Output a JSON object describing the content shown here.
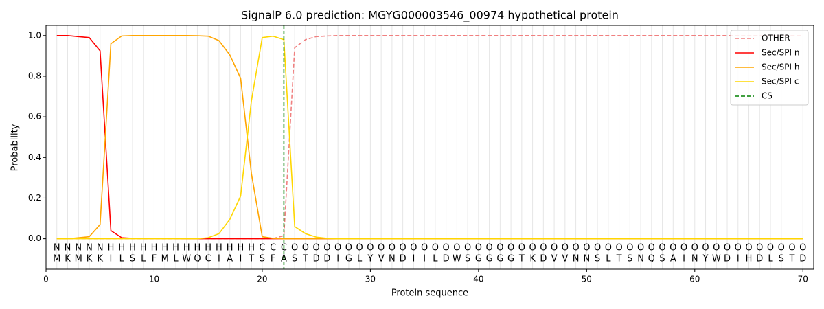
{
  "chart_data": {
    "type": "line",
    "title": "SignalP 6.0 prediction: MGYG000003546_00974 hypothetical protein",
    "x_label": "Protein sequence",
    "y_label": "Probability",
    "x": [
      1,
      2,
      3,
      4,
      5,
      6,
      7,
      8,
      9,
      10,
      11,
      12,
      13,
      14,
      15,
      16,
      17,
      18,
      19,
      20,
      21,
      22,
      23,
      24,
      25,
      26,
      27,
      28,
      29,
      30,
      31,
      32,
      33,
      34,
      35,
      36,
      37,
      38,
      39,
      40,
      41,
      42,
      43,
      44,
      45,
      46,
      47,
      48,
      49,
      50,
      51,
      52,
      53,
      54,
      55,
      56,
      57,
      58,
      59,
      60,
      61,
      62,
      63,
      64,
      65,
      66,
      67,
      68,
      69,
      70
    ],
    "residues": [
      "M",
      "K",
      "M",
      "K",
      "K",
      "I",
      "L",
      "S",
      "L",
      "F",
      "M",
      "L",
      "W",
      "Q",
      "C",
      "I",
      "A",
      "I",
      "T",
      "S",
      "F",
      "A",
      "S",
      "T",
      "D",
      "D",
      "I",
      "G",
      "L",
      "Y",
      "V",
      "N",
      "D",
      "I",
      "I",
      "L",
      "D",
      "W",
      "S",
      "G",
      "G",
      "G",
      "G",
      "T",
      "K",
      "D",
      "V",
      "V",
      "N",
      "N",
      "S",
      "L",
      "T",
      "S",
      "N",
      "Q",
      "S",
      "A",
      "I",
      "N",
      "Y",
      "W",
      "D",
      "I",
      "H",
      "D",
      "L",
      "S",
      "T",
      "D"
    ],
    "regions": [
      "N",
      "N",
      "N",
      "N",
      "N",
      "H",
      "H",
      "H",
      "H",
      "H",
      "H",
      "H",
      "H",
      "H",
      "H",
      "H",
      "H",
      "H",
      "H",
      "C",
      "C",
      "C",
      "O",
      "O",
      "O",
      "O",
      "O",
      "O",
      "O",
      "O",
      "O",
      "O",
      "O",
      "O",
      "O",
      "O",
      "O",
      "O",
      "O",
      "O",
      "O",
      "O",
      "O",
      "O",
      "O",
      "O",
      "O",
      "O",
      "O",
      "O",
      "O",
      "O",
      "O",
      "O",
      "O",
      "O",
      "O",
      "O",
      "O",
      "O",
      "O",
      "O",
      "O",
      "O",
      "O",
      "O",
      "O",
      "O",
      "O",
      "O"
    ],
    "region_colors": {
      "N": "#ff0000",
      "H": "#ffa500",
      "C": "#ffd700",
      "O": "#808080"
    },
    "series": [
      {
        "name": "OTHER",
        "color": "#f08080",
        "dashed": true,
        "values": [
          0,
          0,
          0,
          0,
          0,
          0,
          0,
          0,
          0,
          0,
          0,
          0,
          0,
          0,
          0,
          0,
          0,
          0,
          0,
          0,
          0.001,
          0.015,
          0.94,
          0.98,
          0.995,
          0.998,
          1,
          1,
          1,
          1,
          1,
          1,
          1,
          1,
          1,
          1,
          1,
          1,
          1,
          1,
          1,
          1,
          1,
          1,
          1,
          1,
          1,
          1,
          1,
          1,
          1,
          1,
          1,
          1,
          1,
          1,
          1,
          1,
          1,
          1,
          1,
          1,
          1,
          1,
          1,
          1,
          1,
          1,
          1,
          1
        ]
      },
      {
        "name": "Sec/SPI n",
        "color": "#ff0000",
        "dashed": false,
        "values": [
          1,
          1,
          0.995,
          0.99,
          0.925,
          0.04,
          0.005,
          0.002,
          0.001,
          0.001,
          0.001,
          0.001,
          0,
          0,
          0,
          0,
          0,
          0,
          0,
          0,
          0,
          0,
          0,
          0,
          0,
          0,
          0,
          0,
          0,
          0,
          0,
          0,
          0,
          0,
          0,
          0,
          0,
          0,
          0,
          0,
          0,
          0,
          0,
          0,
          0,
          0,
          0,
          0,
          0,
          0,
          0,
          0,
          0,
          0,
          0,
          0,
          0,
          0,
          0,
          0,
          0,
          0,
          0,
          0,
          0,
          0,
          0,
          0,
          0,
          0
        ]
      },
      {
        "name": "Sec/SPI h",
        "color": "#ffa500",
        "dashed": false,
        "values": [
          0,
          0,
          0.005,
          0.01,
          0.07,
          0.96,
          0.998,
          1,
          1,
          1,
          1,
          1,
          1,
          0.999,
          0.997,
          0.975,
          0.905,
          0.79,
          0.32,
          0.01,
          0.002,
          0,
          0,
          0,
          0,
          0,
          0,
          0,
          0,
          0,
          0,
          0,
          0,
          0,
          0,
          0,
          0,
          0,
          0,
          0,
          0,
          0,
          0,
          0,
          0,
          0,
          0,
          0,
          0,
          0,
          0,
          0,
          0,
          0,
          0,
          0,
          0,
          0,
          0,
          0,
          0,
          0,
          0,
          0,
          0,
          0,
          0,
          0,
          0,
          0
        ]
      },
      {
        "name": "Sec/SPI c",
        "color": "#ffd700",
        "dashed": false,
        "values": [
          0,
          0,
          0,
          0,
          0,
          0,
          0,
          0,
          0,
          0,
          0,
          0,
          0,
          0,
          0.005,
          0.025,
          0.095,
          0.21,
          0.68,
          0.99,
          0.997,
          0.98,
          0.06,
          0.025,
          0.008,
          0.002,
          0,
          0,
          0,
          0,
          0,
          0,
          0,
          0,
          0,
          0,
          0,
          0,
          0,
          0,
          0,
          0,
          0,
          0,
          0,
          0,
          0,
          0,
          0,
          0,
          0,
          0,
          0,
          0,
          0,
          0,
          0,
          0,
          0,
          0,
          0,
          0,
          0,
          0,
          0,
          0,
          0,
          0,
          0,
          0
        ]
      }
    ],
    "cs": {
      "name": "CS",
      "color": "#008000",
      "x": 22
    },
    "xlim": [
      0,
      71
    ],
    "ylim": [
      -0.15,
      1.05
    ],
    "xticks": [
      0,
      10,
      20,
      30,
      40,
      50,
      60,
      70
    ],
    "yticks": [
      {
        "value": 0,
        "label": "0.0"
      },
      {
        "value": 0.2,
        "label": "0.2"
      },
      {
        "value": 0.4,
        "label": "0.4"
      },
      {
        "value": 0.6,
        "label": "0.6"
      },
      {
        "value": 0.8,
        "label": "0.8"
      },
      {
        "value": 1,
        "label": "1.0"
      }
    ],
    "legend": "upper right"
  }
}
